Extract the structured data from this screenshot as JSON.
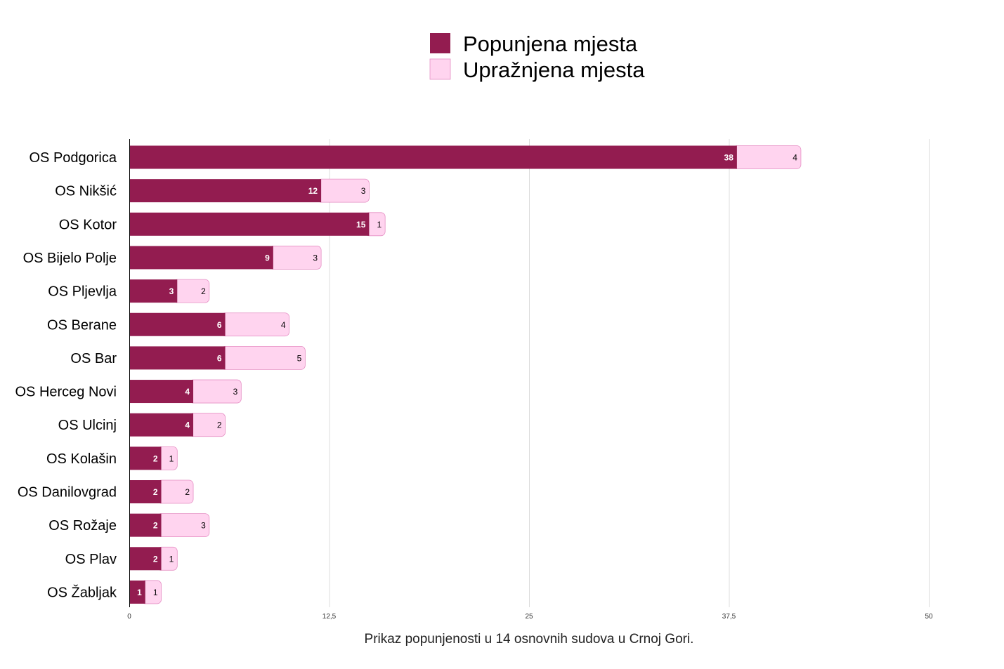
{
  "chart_data": {
    "type": "bar",
    "orientation": "horizontal",
    "stacked": true,
    "categories": [
      "OS Podgorica",
      "OS Nikšić",
      "OS Kotor",
      "OS Bijelo Polje",
      "OS Pljevlja",
      "OS Berane",
      "OS Bar",
      "OS Herceg Novi",
      "OS Ulcinj",
      "OS Kolašin",
      "OS Danilovgrad",
      "OS Rožaje",
      "OS Plav",
      "OS Žabljak"
    ],
    "series": [
      {
        "name": "Popunjena mjesta",
        "color": "#931c50",
        "values": [
          38,
          12,
          15,
          9,
          3,
          6,
          6,
          4,
          4,
          2,
          2,
          2,
          2,
          1
        ]
      },
      {
        "name": "Upražnjena mjesta",
        "color": "#ffd4ef",
        "values": [
          4,
          3,
          1,
          3,
          2,
          4,
          5,
          3,
          2,
          1,
          2,
          3,
          1,
          1
        ]
      }
    ],
    "xlim": [
      0,
      50
    ],
    "x_ticks": [
      "0",
      "12,5",
      "25",
      "37,5",
      "50"
    ],
    "title": "",
    "caption": "Prikaz popunjenosti u 14 osnovnih sudova u Crnoj Gori.",
    "grid": true,
    "data_labels": true,
    "legend_position": "top-center"
  }
}
